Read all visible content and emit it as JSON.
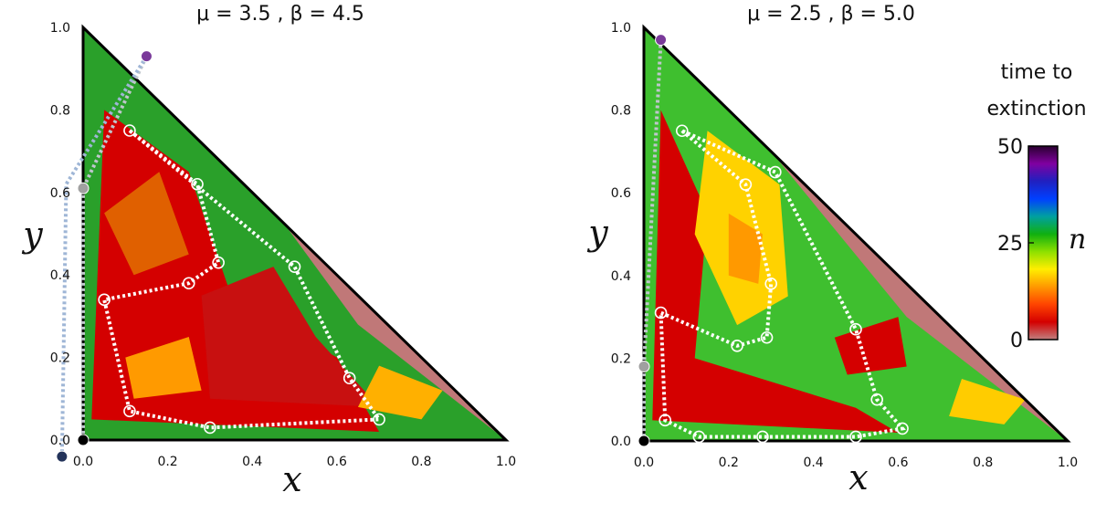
{
  "chart_data": [
    {
      "type": "heatmap",
      "title": "μ = 3.5 , β = 4.5",
      "xlabel": "x",
      "ylabel": "y",
      "xlim": [
        0,
        1
      ],
      "ylim": [
        0,
        1
      ],
      "xticks": [
        "0.0",
        "0.2",
        "0.4",
        "0.6",
        "0.8",
        "1.0"
      ],
      "yticks": [
        "0.0",
        "0.2",
        "0.4",
        "0.6",
        "0.8",
        "1.0"
      ],
      "series": [
        {
          "style": "white-dotted-orbit",
          "points": [
            [
              0.11,
              0.75
            ],
            [
              0.27,
              0.62
            ],
            [
              0.32,
              0.43
            ],
            [
              0.25,
              0.38
            ],
            [
              0.05,
              0.34
            ],
            [
              0.11,
              0.07
            ],
            [
              0.3,
              0.03
            ],
            [
              0.7,
              0.05
            ],
            [
              0.63,
              0.15
            ],
            [
              0.5,
              0.42
            ]
          ]
        },
        {
          "style": "gray-dotted-path",
          "points": [
            [
              0.15,
              0.93
            ],
            [
              0.0,
              0.61
            ],
            [
              0.0,
              0.0
            ]
          ]
        },
        {
          "style": "blue-dotted-path",
          "points": [
            [
              0.15,
              0.93
            ],
            [
              -0.04,
              0.62
            ],
            [
              -0.05,
              -0.04
            ]
          ]
        }
      ],
      "markers": [
        {
          "x": 0.15,
          "y": 0.93,
          "color": "#7a3a9a"
        },
        {
          "x": 0.0,
          "y": 0.61,
          "color": "#a0a0a0"
        },
        {
          "x": 0.0,
          "y": 0.0,
          "color": "#000000"
        },
        {
          "x": -0.05,
          "y": -0.04,
          "color": "#23335a"
        }
      ]
    },
    {
      "type": "heatmap",
      "title": "μ = 2.5 , β = 5.0",
      "xlabel": "x",
      "ylabel": "y",
      "xlim": [
        0,
        1
      ],
      "ylim": [
        0,
        1
      ],
      "xticks": [
        "0.0",
        "0.2",
        "0.4",
        "0.6",
        "0.8",
        "1.0"
      ],
      "yticks": [
        "0.0",
        "0.2",
        "0.4",
        "0.6",
        "0.8",
        "1.0"
      ],
      "series": [
        {
          "style": "white-dotted-orbit",
          "points": [
            [
              0.09,
              0.75
            ],
            [
              0.24,
              0.62
            ],
            [
              0.3,
              0.38
            ],
            [
              0.29,
              0.25
            ],
            [
              0.22,
              0.23
            ],
            [
              0.04,
              0.31
            ],
            [
              0.05,
              0.05
            ],
            [
              0.13,
              0.01
            ],
            [
              0.28,
              0.01
            ],
            [
              0.5,
              0.01
            ],
            [
              0.61,
              0.03
            ],
            [
              0.55,
              0.1
            ],
            [
              0.5,
              0.27
            ],
            [
              0.31,
              0.65
            ]
          ]
        },
        {
          "style": "gray-dotted-path",
          "points": [
            [
              0.04,
              0.97
            ],
            [
              0.0,
              0.18
            ],
            [
              0.0,
              0.0
            ]
          ]
        }
      ],
      "markers": [
        {
          "x": 0.04,
          "y": 0.97,
          "color": "#7a3a9a"
        },
        {
          "x": 0.0,
          "y": 0.18,
          "color": "#a0a0a0"
        },
        {
          "x": 0.0,
          "y": 0.0,
          "color": "#000000"
        }
      ]
    }
  ],
  "colorbar": {
    "label_line1": "time to",
    "label_line2": "extinction",
    "variable": "n",
    "ticks": [
      "50",
      "25",
      "0"
    ],
    "range": [
      0,
      50
    ],
    "colors": [
      "#c08080",
      "#d40000",
      "#ff4400",
      "#ff9900",
      "#ffee00",
      "#8ce000",
      "#10b010",
      "#00a0a0",
      "#0040ff",
      "#2020c0",
      "#8000a0",
      "#2a0030"
    ]
  }
}
